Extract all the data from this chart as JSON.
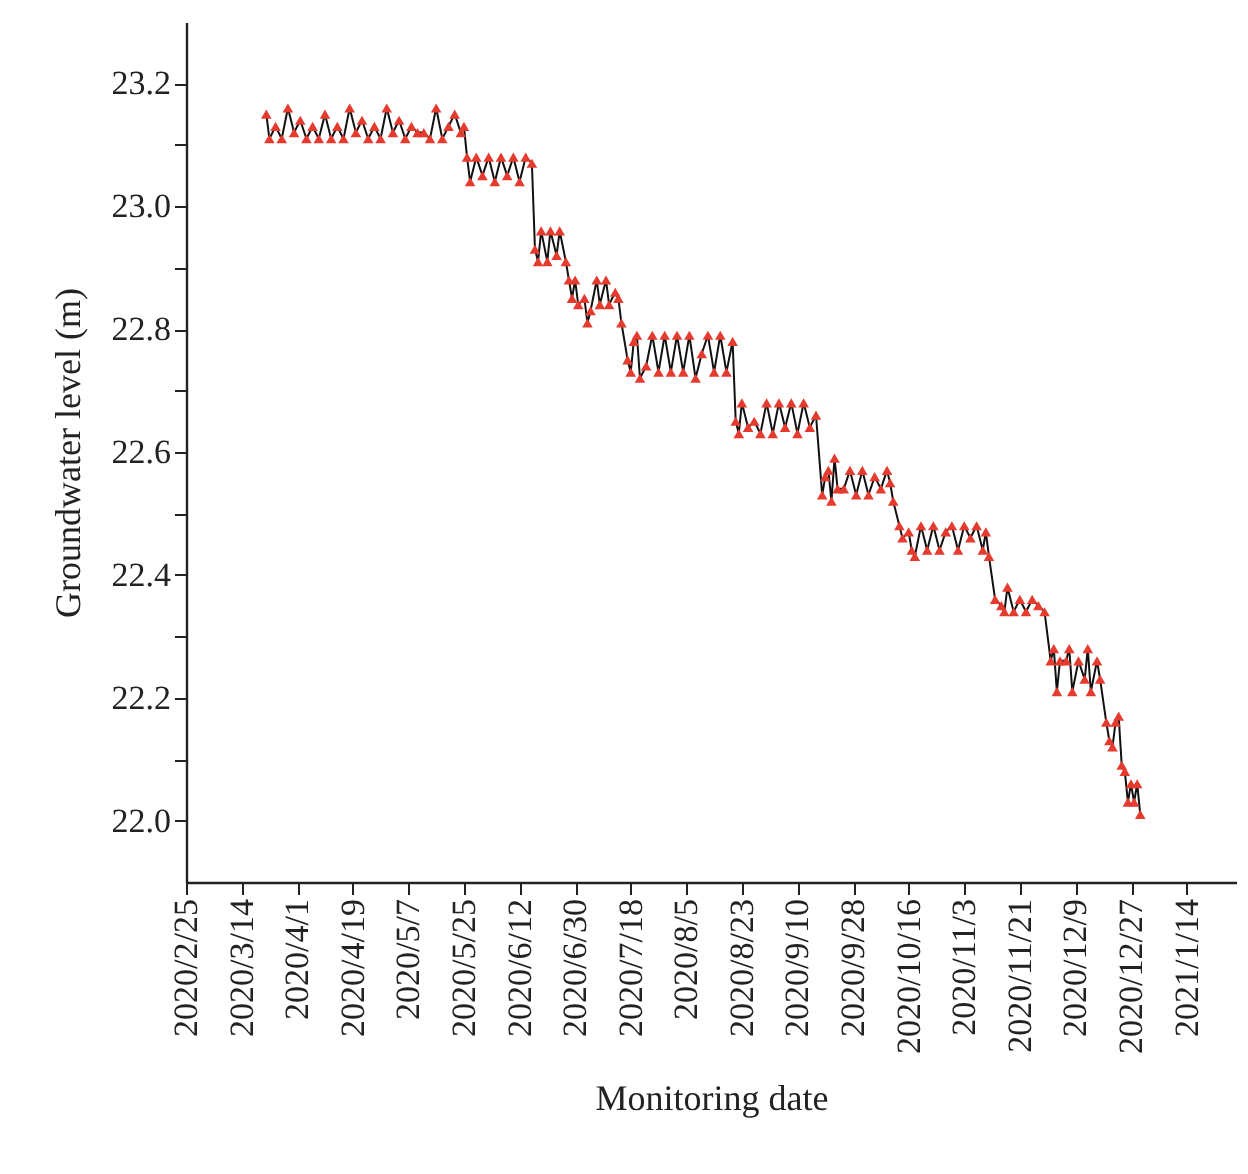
{
  "chart_data": {
    "type": "line",
    "xlabel": "Monitoring date",
    "ylabel": "Groundwater level (m)",
    "marker": "triangle",
    "grid": false,
    "xlim": [
      "2020-02-25",
      "2021-01-30"
    ],
    "xticks": [
      {
        "value": "2020-02-25",
        "label": "2020/2/25"
      },
      {
        "value": "2020-03-14",
        "label": "2020/3/14"
      },
      {
        "value": "2020-04-01",
        "label": "2020/4/1"
      },
      {
        "value": "2020-04-19",
        "label": "2020/4/19"
      },
      {
        "value": "2020-05-07",
        "label": "2020/5/7"
      },
      {
        "value": "2020-05-25",
        "label": "2020/5/25"
      },
      {
        "value": "2020-06-12",
        "label": "2020/6/12"
      },
      {
        "value": "2020-06-30",
        "label": "2020/6/30"
      },
      {
        "value": "2020-07-18",
        "label": "2020/7/18"
      },
      {
        "value": "2020-08-05",
        "label": "2020/8/5"
      },
      {
        "value": "2020-08-23",
        "label": "2020/8/23"
      },
      {
        "value": "2020-09-10",
        "label": "2020/9/10"
      },
      {
        "value": "2020-09-28",
        "label": "2020/9/28"
      },
      {
        "value": "2020-10-16",
        "label": "2020/10/16"
      },
      {
        "value": "2020-11-03",
        "label": "2020/11/3"
      },
      {
        "value": "2020-11-21",
        "label": "2020/11/21"
      },
      {
        "value": "2020-12-09",
        "label": "2020/12/9"
      },
      {
        "value": "2020-12-27",
        "label": "2020/12/27"
      },
      {
        "value": "2021-01-14",
        "label": "2021/1/14"
      }
    ],
    "ylim": [
      21.9,
      23.3
    ],
    "yticks": [
      {
        "value": 22.0,
        "label": "22.0"
      },
      {
        "value": 22.1,
        "label": null
      },
      {
        "value": 22.2,
        "label": "22.2"
      },
      {
        "value": 22.3,
        "label": null
      },
      {
        "value": 22.4,
        "label": "22.4"
      },
      {
        "value": 22.5,
        "label": null
      },
      {
        "value": 22.6,
        "label": "22.6"
      },
      {
        "value": 22.7,
        "label": null
      },
      {
        "value": 22.8,
        "label": "22.8"
      },
      {
        "value": 22.9,
        "label": null
      },
      {
        "value": 23.0,
        "label": "23.0"
      },
      {
        "value": 23.1,
        "label": null
      },
      {
        "value": 23.2,
        "label": "23.2"
      }
    ],
    "x": [
      "2020-03-22",
      "2020-03-23",
      "2020-03-25",
      "2020-03-27",
      "2020-03-29",
      "2020-03-31",
      "2020-04-02",
      "2020-04-04",
      "2020-04-06",
      "2020-04-08",
      "2020-04-10",
      "2020-04-12",
      "2020-04-14",
      "2020-04-16",
      "2020-04-18",
      "2020-04-20",
      "2020-04-22",
      "2020-04-24",
      "2020-04-26",
      "2020-04-28",
      "2020-04-30",
      "2020-05-02",
      "2020-05-04",
      "2020-05-06",
      "2020-05-08",
      "2020-05-10",
      "2020-05-12",
      "2020-05-14",
      "2020-05-16",
      "2020-05-18",
      "2020-05-20",
      "2020-05-22",
      "2020-05-24",
      "2020-05-25",
      "2020-05-26",
      "2020-05-27",
      "2020-05-29",
      "2020-05-31",
      "2020-06-02",
      "2020-06-04",
      "2020-06-06",
      "2020-06-08",
      "2020-06-10",
      "2020-06-12",
      "2020-06-14",
      "2020-06-16",
      "2020-06-17",
      "2020-06-18",
      "2020-06-19",
      "2020-06-21",
      "2020-06-22",
      "2020-06-24",
      "2020-06-25",
      "2020-06-27",
      "2020-06-28",
      "2020-06-29",
      "2020-06-30",
      "2020-07-01",
      "2020-07-03",
      "2020-07-04",
      "2020-07-05",
      "2020-07-07",
      "2020-07-08",
      "2020-07-10",
      "2020-07-11",
      "2020-07-13",
      "2020-07-14",
      "2020-07-15",
      "2020-07-17",
      "2020-07-18",
      "2020-07-19",
      "2020-07-20",
      "2020-07-21",
      "2020-07-23",
      "2020-07-25",
      "2020-07-27",
      "2020-07-29",
      "2020-07-31",
      "2020-08-02",
      "2020-08-04",
      "2020-08-06",
      "2020-08-08",
      "2020-08-10",
      "2020-08-12",
      "2020-08-14",
      "2020-08-16",
      "2020-08-18",
      "2020-08-20",
      "2020-08-21",
      "2020-08-22",
      "2020-08-23",
      "2020-08-25",
      "2020-08-27",
      "2020-08-29",
      "2020-08-31",
      "2020-09-02",
      "2020-09-04",
      "2020-09-06",
      "2020-09-08",
      "2020-09-10",
      "2020-09-12",
      "2020-09-14",
      "2020-09-16",
      "2020-09-18",
      "2020-09-19",
      "2020-09-20",
      "2020-09-21",
      "2020-09-22",
      "2020-09-23",
      "2020-09-25",
      "2020-09-27",
      "2020-09-29",
      "2020-10-01",
      "2020-10-03",
      "2020-10-05",
      "2020-10-07",
      "2020-10-09",
      "2020-10-10",
      "2020-10-11",
      "2020-10-13",
      "2020-10-14",
      "2020-10-16",
      "2020-10-17",
      "2020-10-18",
      "2020-10-20",
      "2020-10-22",
      "2020-10-24",
      "2020-10-26",
      "2020-10-28",
      "2020-10-30",
      "2020-11-01",
      "2020-11-03",
      "2020-11-05",
      "2020-11-07",
      "2020-11-09",
      "2020-11-10",
      "2020-11-11",
      "2020-11-13",
      "2020-11-15",
      "2020-11-16",
      "2020-11-17",
      "2020-11-19",
      "2020-11-21",
      "2020-11-23",
      "2020-11-25",
      "2020-11-27",
      "2020-11-29",
      "2020-12-01",
      "2020-12-02",
      "2020-12-03",
      "2020-12-04",
      "2020-12-06",
      "2020-12-07",
      "2020-12-08",
      "2020-12-10",
      "2020-12-12",
      "2020-12-13",
      "2020-12-14",
      "2020-12-16",
      "2020-12-17",
      "2020-12-19",
      "2020-12-20",
      "2020-12-21",
      "2020-12-22",
      "2020-12-23",
      "2020-12-24",
      "2020-12-25",
      "2020-12-26",
      "2020-12-27",
      "2020-12-28",
      "2020-12-29",
      "2020-12-30"
    ],
    "series": [
      {
        "color": "#e53a2e",
        "values": [
          23.15,
          23.11,
          23.13,
          23.11,
          23.16,
          23.12,
          23.14,
          23.11,
          23.13,
          23.11,
          23.15,
          23.11,
          23.13,
          23.11,
          23.16,
          23.12,
          23.14,
          23.11,
          23.13,
          23.11,
          23.16,
          23.12,
          23.14,
          23.11,
          23.13,
          23.12,
          23.12,
          23.11,
          23.16,
          23.11,
          23.13,
          23.15,
          23.12,
          23.13,
          23.08,
          23.04,
          23.08,
          23.05,
          23.08,
          23.04,
          23.08,
          23.05,
          23.08,
          23.04,
          23.08,
          23.07,
          22.93,
          22.91,
          22.96,
          22.91,
          22.96,
          22.92,
          22.96,
          22.91,
          22.88,
          22.85,
          22.88,
          22.84,
          22.85,
          22.81,
          22.83,
          22.88,
          22.84,
          22.88,
          22.84,
          22.86,
          22.85,
          22.81,
          22.75,
          22.73,
          22.78,
          22.79,
          22.72,
          22.74,
          22.79,
          22.73,
          22.79,
          22.73,
          22.79,
          22.73,
          22.79,
          22.72,
          22.76,
          22.79,
          22.73,
          22.79,
          22.73,
          22.78,
          22.65,
          22.63,
          22.68,
          22.64,
          22.65,
          22.63,
          22.68,
          22.63,
          22.68,
          22.64,
          22.68,
          22.63,
          22.68,
          22.64,
          22.66,
          22.53,
          22.56,
          22.57,
          22.52,
          22.59,
          22.54,
          22.54,
          22.57,
          22.53,
          22.57,
          22.53,
          22.56,
          22.54,
          22.57,
          22.55,
          22.52,
          22.48,
          22.46,
          22.47,
          22.44,
          22.43,
          22.48,
          22.44,
          22.48,
          22.44,
          22.47,
          22.48,
          22.44,
          22.48,
          22.46,
          22.48,
          22.44,
          22.47,
          22.43,
          22.36,
          22.35,
          22.34,
          22.38,
          22.34,
          22.36,
          22.34,
          22.36,
          22.35,
          22.34,
          22.26,
          22.28,
          22.21,
          22.26,
          22.26,
          22.28,
          22.21,
          22.26,
          22.23,
          22.28,
          22.21,
          22.26,
          22.23,
          22.16,
          22.13,
          22.12,
          22.16,
          22.17,
          22.09,
          22.08,
          22.03,
          22.06,
          22.03,
          22.06,
          22.01
        ]
      }
    ]
  }
}
